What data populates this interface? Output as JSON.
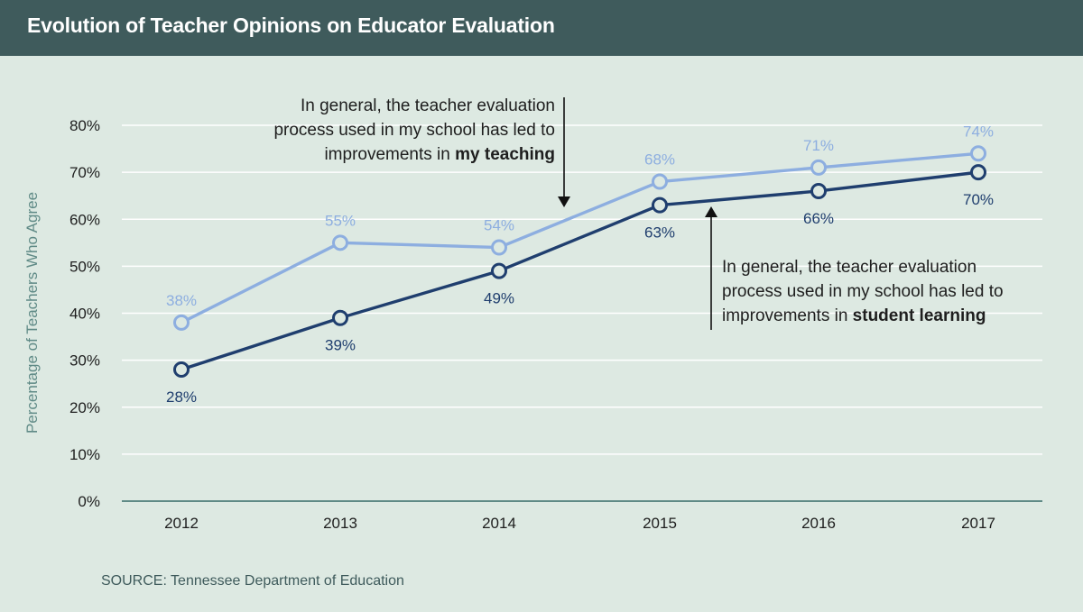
{
  "header": {
    "title": "Evolution of Teacher Opinions on Educator Evaluation"
  },
  "source": "SOURCE: Tennessee Department of Education",
  "annotations": {
    "teaching": {
      "line1": "In general, the teacher evaluation",
      "line2": "process used in my school has led to",
      "line3_prefix": "improvements in ",
      "line3_bold": "my teaching"
    },
    "learning": {
      "line1": "In general, the teacher evaluation",
      "line2": "process used in my school has led to",
      "line3_prefix": "improvements in ",
      "line3_bold": "student learning"
    }
  },
  "colors": {
    "background": "#dde9e2",
    "header": "#3f5b5c",
    "my_teaching": "#8daee0",
    "student_learning": "#1f3e6e",
    "axis": "#5f8a86",
    "grid": "#ffffff"
  },
  "chart_data": {
    "type": "line",
    "title": "Evolution of Teacher Opinions on Educator Evaluation",
    "xlabel": "",
    "ylabel": "Percentage of Teachers Who Agree",
    "x": [
      "2012",
      "2013",
      "2014",
      "2015",
      "2016",
      "2017"
    ],
    "ylim": [
      0,
      80
    ],
    "yticks": [
      "0%",
      "10%",
      "20%",
      "30%",
      "40%",
      "50%",
      "60%",
      "70%",
      "80%"
    ],
    "grid": true,
    "series": [
      {
        "key": "my_teaching",
        "values": [
          38,
          55,
          54,
          68,
          71,
          74
        ],
        "labels": [
          "38%",
          "55%",
          "54%",
          "68%",
          "71%",
          "74%"
        ],
        "color": "#8daee0"
      },
      {
        "key": "student_learning",
        "values": [
          28,
          39,
          49,
          63,
          66,
          70
        ],
        "labels": [
          "28%",
          "39%",
          "49%",
          "63%",
          "66%",
          "70%"
        ],
        "color": "#1f3e6e"
      }
    ]
  }
}
